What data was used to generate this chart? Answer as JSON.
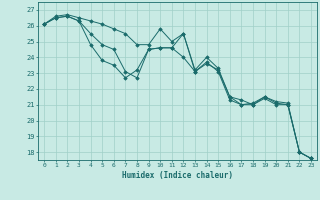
{
  "xlabel": "Humidex (Indice chaleur)",
  "xlim": [
    -0.5,
    23.5
  ],
  "ylim": [
    17.5,
    27.5
  ],
  "yticks": [
    18,
    19,
    20,
    21,
    22,
    23,
    24,
    25,
    26,
    27
  ],
  "xticks": [
    0,
    1,
    2,
    3,
    4,
    5,
    6,
    7,
    8,
    9,
    10,
    11,
    12,
    13,
    14,
    15,
    16,
    17,
    18,
    19,
    20,
    21,
    22,
    23
  ],
  "bg_color": "#c8eae4",
  "line_color": "#1a6b6b",
  "grid_color": "#a0d0c8",
  "series": [
    [
      26.1,
      26.6,
      26.7,
      26.5,
      26.3,
      26.1,
      25.8,
      25.5,
      24.8,
      24.8,
      25.8,
      25.0,
      25.5,
      23.2,
      24.0,
      23.3,
      21.5,
      21.0,
      21.1,
      21.5,
      21.2,
      21.1,
      18.0,
      17.6
    ],
    [
      26.1,
      26.5,
      26.6,
      26.3,
      25.5,
      24.8,
      24.5,
      23.1,
      22.7,
      24.5,
      24.6,
      24.6,
      25.5,
      23.1,
      23.7,
      23.1,
      21.3,
      21.0,
      21.0,
      21.4,
      21.0,
      21.0,
      18.0,
      17.6
    ],
    [
      26.1,
      26.5,
      26.6,
      26.3,
      24.8,
      23.8,
      23.5,
      22.7,
      23.2,
      24.5,
      24.6,
      24.6,
      24.0,
      23.1,
      23.6,
      23.2,
      21.5,
      21.3,
      21.0,
      21.5,
      21.1,
      21.0,
      18.0,
      17.6
    ]
  ]
}
